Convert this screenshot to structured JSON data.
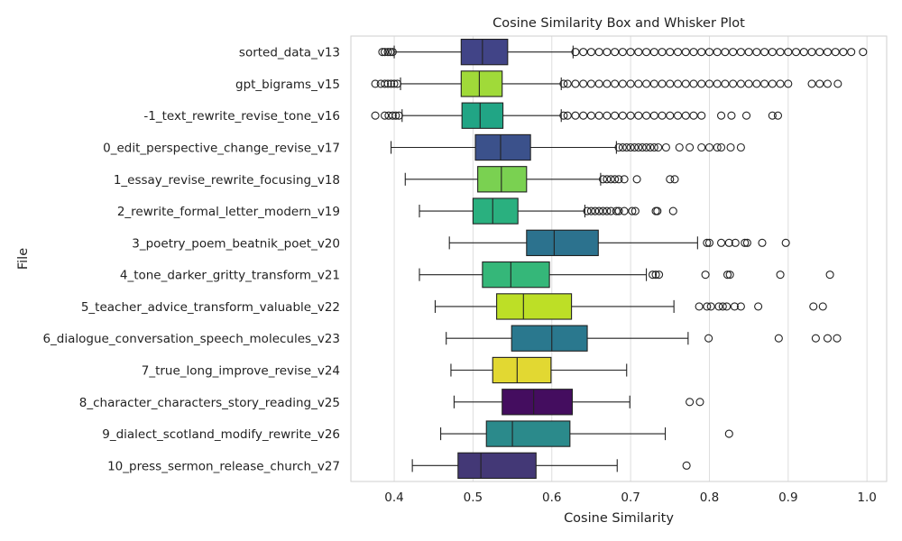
{
  "chart_data": {
    "type": "box",
    "title": "Cosine Similarity Box and Whisker Plot",
    "xlabel": "Cosine Similarity",
    "ylabel": "File",
    "xlim": [
      0.345,
      1.025
    ],
    "xticks": [
      0.4,
      0.5,
      0.6,
      0.7,
      0.8,
      0.9,
      1.0
    ],
    "xtick_labels": [
      "0.4",
      "0.5",
      "0.6",
      "0.7",
      "0.8",
      "0.9",
      "1.0"
    ],
    "grid": "vertical",
    "series": [
      {
        "label": "sorted_data_v13",
        "color": "#414487",
        "whisker_low": 0.4,
        "q1": 0.485,
        "median": 0.512,
        "q3": 0.544,
        "whisker_high": 0.627,
        "outliers_low": [
          0.385,
          0.388,
          0.392,
          0.395,
          0.398
        ],
        "outliers_high": [
          0.63,
          0.64,
          0.65,
          0.66,
          0.67,
          0.68,
          0.69,
          0.7,
          0.71,
          0.72,
          0.73,
          0.74,
          0.75,
          0.76,
          0.77,
          0.78,
          0.79,
          0.8,
          0.81,
          0.82,
          0.83,
          0.84,
          0.85,
          0.86,
          0.87,
          0.88,
          0.89,
          0.9,
          0.91,
          0.92,
          0.93,
          0.94,
          0.95,
          0.96,
          0.97,
          0.98,
          0.995
        ]
      },
      {
        "label": "gpt_bigrams_v15",
        "color": "#a0da39",
        "whisker_low": 0.408,
        "q1": 0.485,
        "median": 0.508,
        "q3": 0.537,
        "whisker_high": 0.612,
        "outliers_low": [
          0.376,
          0.383,
          0.388,
          0.392,
          0.396,
          0.4,
          0.404
        ],
        "outliers_high": [
          0.615,
          0.62,
          0.63,
          0.64,
          0.65,
          0.66,
          0.67,
          0.68,
          0.69,
          0.7,
          0.71,
          0.72,
          0.73,
          0.74,
          0.75,
          0.76,
          0.77,
          0.78,
          0.79,
          0.8,
          0.81,
          0.82,
          0.83,
          0.84,
          0.85,
          0.86,
          0.87,
          0.88,
          0.89,
          0.9,
          0.93,
          0.94,
          0.95,
          0.963
        ]
      },
      {
        "label": "-1_text_rewrite_revise_tone_v16",
        "color": "#21a585",
        "whisker_low": 0.41,
        "q1": 0.486,
        "median": 0.509,
        "q3": 0.538,
        "whisker_high": 0.612,
        "outliers_low": [
          0.376,
          0.388,
          0.393,
          0.398,
          0.402,
          0.406
        ],
        "outliers_high": [
          0.615,
          0.62,
          0.63,
          0.64,
          0.65,
          0.66,
          0.67,
          0.68,
          0.69,
          0.7,
          0.71,
          0.72,
          0.73,
          0.74,
          0.75,
          0.76,
          0.77,
          0.78,
          0.79,
          0.815,
          0.828,
          0.847,
          0.88,
          0.887
        ]
      },
      {
        "label": "0_edit_perspective_change_revise_v17",
        "color": "#3b518b",
        "whisker_low": 0.396,
        "q1": 0.503,
        "median": 0.535,
        "q3": 0.573,
        "whisker_high": 0.682,
        "outliers_low": [],
        "outliers_high": [
          0.685,
          0.69,
          0.695,
          0.7,
          0.705,
          0.71,
          0.715,
          0.72,
          0.725,
          0.73,
          0.735,
          0.745,
          0.762,
          0.775,
          0.79,
          0.8,
          0.81,
          0.815,
          0.827,
          0.84
        ]
      },
      {
        "label": "1_essay_revise_rewrite_focusing_v18",
        "color": "#7ad151",
        "whisker_low": 0.414,
        "q1": 0.506,
        "median": 0.536,
        "q3": 0.568,
        "whisker_high": 0.662,
        "outliers_low": [],
        "outliers_high": [
          0.665,
          0.67,
          0.675,
          0.68,
          0.685,
          0.692,
          0.708,
          0.75,
          0.756
        ]
      },
      {
        "label": "2_rewrite_formal_letter_modern_v19",
        "color": "#2ab07f",
        "whisker_low": 0.432,
        "q1": 0.5,
        "median": 0.525,
        "q3": 0.557,
        "whisker_high": 0.642,
        "outliers_low": [],
        "outliers_high": [
          0.645,
          0.65,
          0.655,
          0.66,
          0.665,
          0.67,
          0.675,
          0.682,
          0.685,
          0.692,
          0.702,
          0.706,
          0.732,
          0.734,
          0.754
        ]
      },
      {
        "label": "3_poetry_poem_beatnik_poet_v20",
        "color": "#2c728e",
        "whisker_low": 0.47,
        "q1": 0.568,
        "median": 0.603,
        "q3": 0.659,
        "whisker_high": 0.785,
        "outliers_low": [],
        "outliers_high": [
          0.797,
          0.8,
          0.815,
          0.825,
          0.833,
          0.845,
          0.848,
          0.867,
          0.897
        ]
      },
      {
        "label": "4_tone_darker_gritty_transform_v21",
        "color": "#35b779",
        "whisker_low": 0.432,
        "q1": 0.512,
        "median": 0.548,
        "q3": 0.597,
        "whisker_high": 0.72,
        "outliers_low": [],
        "outliers_high": [
          0.728,
          0.732,
          0.736,
          0.795,
          0.823,
          0.826,
          0.89,
          0.953
        ]
      },
      {
        "label": "5_teacher_advice_transform_valuable_v22",
        "color": "#bddf26",
        "whisker_low": 0.452,
        "q1": 0.53,
        "median": 0.564,
        "q3": 0.625,
        "whisker_high": 0.755,
        "outliers_low": [],
        "outliers_high": [
          0.787,
          0.797,
          0.802,
          0.812,
          0.817,
          0.822,
          0.832,
          0.84,
          0.862,
          0.932,
          0.944
        ]
      },
      {
        "label": "6_dialogue_conversation_speech_molecules_v23",
        "color": "#2a788e",
        "whisker_low": 0.466,
        "q1": 0.549,
        "median": 0.6,
        "q3": 0.645,
        "whisker_high": 0.773,
        "outliers_low": [],
        "outliers_high": [
          0.799,
          0.888,
          0.935,
          0.95,
          0.962
        ]
      },
      {
        "label": "7_true_long_improve_revise_v24",
        "color": "#e2d832",
        "whisker_low": 0.472,
        "q1": 0.525,
        "median": 0.556,
        "q3": 0.599,
        "whisker_high": 0.695,
        "outliers_low": [],
        "outliers_high": []
      },
      {
        "label": "8_character_characters_story_reading_v25",
        "color": "#440d5f",
        "whisker_low": 0.476,
        "q1": 0.537,
        "median": 0.577,
        "q3": 0.626,
        "whisker_high": 0.699,
        "outliers_low": [],
        "outliers_high": [
          0.775,
          0.788
        ]
      },
      {
        "label": "9_dialect_scotland_modify_rewrite_v26",
        "color": "#2b8a8b",
        "whisker_low": 0.459,
        "q1": 0.517,
        "median": 0.55,
        "q3": 0.623,
        "whisker_high": 0.744,
        "outliers_low": [],
        "outliers_high": [
          0.825
        ]
      },
      {
        "label": "10_press_sermon_release_church_v27",
        "color": "#433876",
        "whisker_low": 0.423,
        "q1": 0.481,
        "median": 0.51,
        "q3": 0.58,
        "whisker_high": 0.683,
        "outliers_low": [],
        "outliers_high": [
          0.771
        ]
      }
    ]
  }
}
